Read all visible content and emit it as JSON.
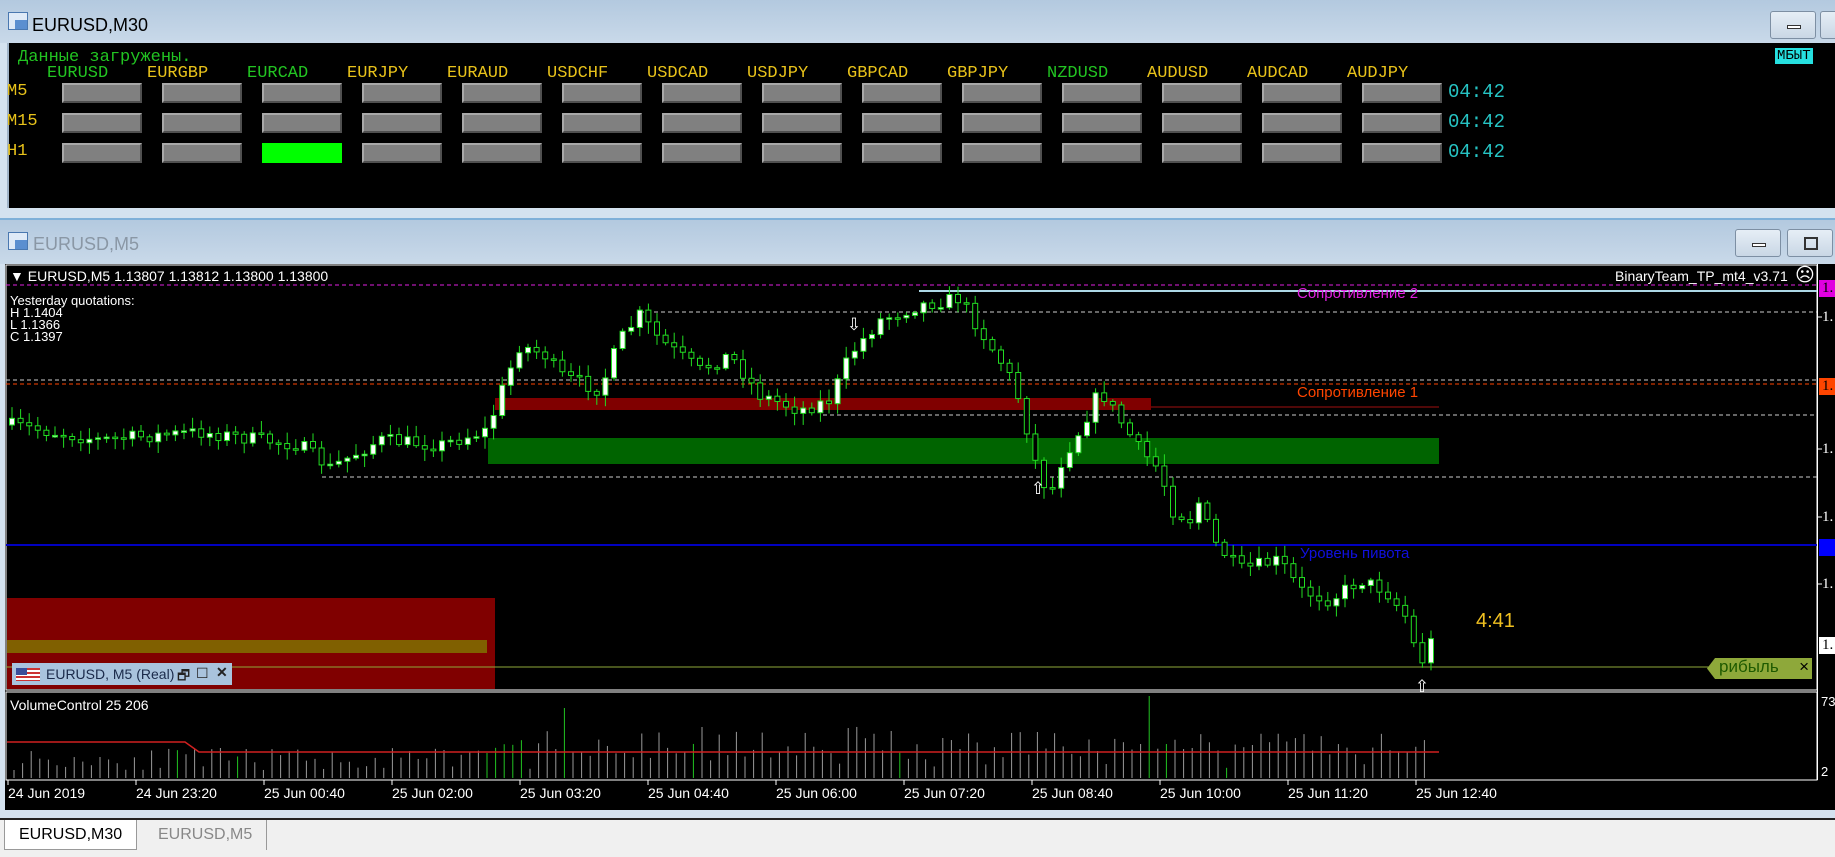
{
  "window_top": {
    "title": "EURUSD,M30"
  },
  "scanner": {
    "status": "Данные загружены.",
    "corner_label": "МБЫТ",
    "pairs": [
      {
        "name": "EURUSD",
        "color": "#22c422"
      },
      {
        "name": "EURGBP",
        "color": "#e8c21a"
      },
      {
        "name": "EURCAD",
        "color": "#22c422"
      },
      {
        "name": "EURJPY",
        "color": "#e8c21a"
      },
      {
        "name": "EURAUD",
        "color": "#e8c21a"
      },
      {
        "name": "USDCHF",
        "color": "#e8c21a"
      },
      {
        "name": "USDCAD",
        "color": "#e8c21a"
      },
      {
        "name": "USDJPY",
        "color": "#e8c21a"
      },
      {
        "name": "GBPCAD",
        "color": "#e8c21a"
      },
      {
        "name": "GBPJPY",
        "color": "#e8c21a"
      },
      {
        "name": "NZDUSD",
        "color": "#22c422"
      },
      {
        "name": "AUDUSD",
        "color": "#e8c21a"
      },
      {
        "name": "AUDCAD",
        "color": "#e8c21a"
      },
      {
        "name": "AUDJPY",
        "color": "#e8c21a"
      }
    ],
    "rows": [
      {
        "label": "M5",
        "time": "04:42",
        "active": []
      },
      {
        "label": "M15",
        "time": "04:42",
        "active": []
      },
      {
        "label": "H1",
        "time": "04:42",
        "active": [
          "EURCAD"
        ]
      }
    ],
    "active_color": "#00ff00"
  },
  "window_chart": {
    "title": "EURUSD,M5"
  },
  "chart": {
    "header": "EURUSD,M5  1.13807 1.13812 1.13800 1.13800",
    "expert": "BinaryTeam_TP_mt4_v3.71",
    "expert_status_icon": "sad-face-icon",
    "yesterday": {
      "title": "Yesterday quotations:",
      "h": "H 1.1404",
      "l": "L 1.1366",
      "c": "C 1.1397"
    },
    "levels": {
      "r2": "Сопротивление 2",
      "r1": "Сопротивление 1",
      "pivot": "Уровень пивота"
    },
    "level_colors": {
      "r2": "#e020e0",
      "r1": "#ff4500",
      "pivot": "#0000ff"
    },
    "timer": "4:41",
    "profit_tag": "рибыль",
    "profit_close": "×",
    "price_labels": [
      "1.",
      "1.",
      "1.",
      "1.",
      "1.",
      "1.",
      "1.",
      "1.",
      "1."
    ],
    "mini_window": "EURUSD, M5 (Real)",
    "indicator": "VolumeControl 25 206",
    "volume_axis": [
      "73",
      "2"
    ],
    "time_axis": [
      "24 Jun 2019",
      "24 Jun 23:20",
      "25 Jun 00:40",
      "25 Jun 02:00",
      "25 Jun 03:20",
      "25 Jun 04:40",
      "25 Jun 06:00",
      "25 Jun 07:20",
      "25 Jun 08:40",
      "25 Jun 10:00",
      "25 Jun 11:20",
      "25 Jun 12:40"
    ]
  },
  "tabs": [
    {
      "label": "EURUSD,M30",
      "active": true
    },
    {
      "label": "EURUSD,M5",
      "active": false
    }
  ]
}
